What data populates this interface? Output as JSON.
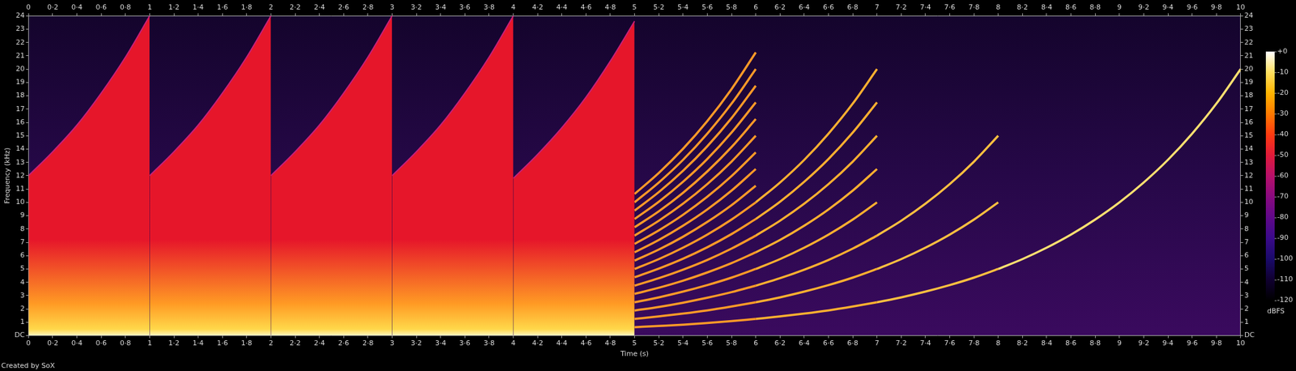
{
  "chart_data": {
    "type": "spectrogram",
    "x_label": "Time (s)",
    "y_label": "Frequency (kHz)",
    "annotations": [
      "Created by SoX"
    ],
    "grid": false,
    "xlim": [
      0,
      10
    ],
    "xticks": [
      0,
      {
        "value": 0.2,
        "label": "0·2"
      },
      {
        "value": 0.4,
        "label": "0·4"
      },
      {
        "value": 0.6,
        "label": "0·6"
      },
      {
        "value": 0.8,
        "label": "0·8"
      },
      1,
      {
        "value": 1.2,
        "label": "1·2"
      },
      {
        "value": 1.4,
        "label": "1·4"
      },
      {
        "value": 1.6,
        "label": "1·6"
      },
      {
        "value": 1.8,
        "label": "1·8"
      },
      2,
      {
        "value": 2.2,
        "label": "2·2"
      },
      {
        "value": 2.4,
        "label": "2·4"
      },
      {
        "value": 2.6,
        "label": "2·6"
      },
      {
        "value": 2.8,
        "label": "2·8"
      },
      3,
      {
        "value": 3.2,
        "label": "3·2"
      },
      {
        "value": 3.4,
        "label": "3·4"
      },
      {
        "value": 3.6,
        "label": "3·6"
      },
      {
        "value": 3.8,
        "label": "3·8"
      },
      4,
      {
        "value": 4.2,
        "label": "4·2"
      },
      {
        "value": 4.4,
        "label": "4·4"
      },
      {
        "value": 4.6,
        "label": "4·6"
      },
      {
        "value": 4.8,
        "label": "4·8"
      },
      5,
      {
        "value": 5.2,
        "label": "5·2"
      },
      {
        "value": 5.4,
        "label": "5·4"
      },
      {
        "value": 5.6,
        "label": "5·6"
      },
      {
        "value": 5.8,
        "label": "5·8"
      },
      6,
      {
        "value": 6.2,
        "label": "6·2"
      },
      {
        "value": 6.4,
        "label": "6·4"
      },
      {
        "value": 6.6,
        "label": "6·6"
      },
      {
        "value": 6.8,
        "label": "6·8"
      },
      7,
      {
        "value": 7.2,
        "label": "7·2"
      },
      {
        "value": 7.4,
        "label": "7·4"
      },
      {
        "value": 7.6,
        "label": "7·6"
      },
      {
        "value": 7.8,
        "label": "7·8"
      },
      8,
      {
        "value": 8.2,
        "label": "8·2"
      },
      {
        "value": 8.4,
        "label": "8·4"
      },
      {
        "value": 8.6,
        "label": "8·6"
      },
      {
        "value": 8.8,
        "label": "8·8"
      },
      9,
      {
        "value": 9.2,
        "label": "9·2"
      },
      {
        "value": 9.4,
        "label": "9·4"
      },
      {
        "value": 9.6,
        "label": "9·6"
      },
      {
        "value": 9.8,
        "label": "9·8"
      },
      10
    ],
    "ylim": [
      0,
      24
    ],
    "yticks": [
      {
        "value": 0,
        "label": "DC"
      },
      1,
      2,
      3,
      4,
      5,
      6,
      7,
      8,
      9,
      10,
      11,
      12,
      13,
      14,
      15,
      16,
      17,
      18,
      19,
      20,
      21,
      22,
      23,
      24
    ],
    "colorbar": {
      "label": "dBFS",
      "range": [
        -120,
        0
      ],
      "ticks": [
        {
          "value": 0,
          "label": "+0"
        },
        -10,
        -20,
        -30,
        -40,
        -50,
        -60,
        -70,
        -80,
        -90,
        -100,
        -110,
        -120
      ]
    },
    "series": [
      {
        "type": "area",
        "color": "#e6162a",
        "x": [
          0,
          0.2,
          0.4,
          0.6,
          0.8,
          1
        ],
        "values": [
          12,
          13.8,
          15.8,
          18.2,
          20.9,
          24
        ]
      },
      {
        "type": "area",
        "color": "#e6162a",
        "x": [
          1,
          1.2,
          1.4,
          1.6,
          1.8,
          2
        ],
        "values": [
          12,
          13.8,
          15.8,
          18.2,
          20.9,
          24
        ]
      },
      {
        "type": "area",
        "color": "#e6162a",
        "x": [
          2,
          2.2,
          2.4,
          2.6,
          2.8,
          3
        ],
        "values": [
          12,
          13.8,
          15.8,
          18.2,
          20.9,
          24
        ]
      },
      {
        "type": "area",
        "color": "#e6162a",
        "x": [
          3,
          3.2,
          3.4,
          3.6,
          3.8,
          4
        ],
        "values": [
          12,
          13.8,
          15.8,
          18.2,
          20.9,
          24
        ]
      },
      {
        "type": "area",
        "color": "#e6162a",
        "x": [
          4,
          4.2,
          4.4,
          4.6,
          4.8,
          5
        ],
        "values": [
          11.8,
          13.6,
          15.6,
          17.9,
          20.6,
          23.6
        ]
      },
      {
        "type": "line",
        "color": "#ff9a28",
        "x": [
          5,
          5.2,
          5.4,
          5.6,
          5.8,
          6
        ],
        "values": [
          0.63,
          0.72,
          0.82,
          0.95,
          1.09,
          1.25
        ]
      },
      {
        "type": "line",
        "color": "#ff9a28",
        "x": [
          5,
          5.2,
          5.4,
          5.6,
          5.8,
          6
        ],
        "values": [
          1.25,
          1.44,
          1.65,
          1.89,
          2.18,
          2.5
        ]
      },
      {
        "type": "line",
        "color": "#ff9a28",
        "x": [
          5,
          5.2,
          5.4,
          5.6,
          5.8,
          6
        ],
        "values": [
          1.88,
          2.15,
          2.47,
          2.84,
          3.26,
          3.75
        ]
      },
      {
        "type": "line",
        "color": "#ff9a28",
        "x": [
          5,
          5.2,
          5.4,
          5.6,
          5.8,
          6
        ],
        "values": [
          2.5,
          2.87,
          3.3,
          3.79,
          4.35,
          5
        ]
      },
      {
        "type": "line",
        "color": "#ff9a28",
        "x": [
          5,
          5.2,
          5.4,
          5.6,
          5.8,
          6
        ],
        "values": [
          3.13,
          3.59,
          4.12,
          4.74,
          5.44,
          6.25
        ]
      },
      {
        "type": "line",
        "color": "#ff9a28",
        "x": [
          5,
          5.2,
          5.4,
          5.6,
          5.8,
          6
        ],
        "values": [
          3.75,
          4.31,
          4.95,
          5.68,
          6.53,
          7.5
        ]
      },
      {
        "type": "line",
        "color": "#ff9a28",
        "x": [
          5,
          5.2,
          5.4,
          5.6,
          5.8,
          6
        ],
        "values": [
          4.38,
          5.03,
          5.77,
          6.63,
          7.62,
          8.75
        ]
      },
      {
        "type": "line",
        "color": "#ff9a28",
        "x": [
          5,
          5.2,
          5.4,
          5.6,
          5.8,
          6
        ],
        "values": [
          5,
          5.74,
          6.6,
          7.58,
          8.71,
          10
        ]
      },
      {
        "type": "line",
        "color": "#ff9a28",
        "x": [
          5,
          5.2,
          5.4,
          5.6,
          5.8,
          6
        ],
        "values": [
          5.63,
          6.46,
          7.42,
          8.53,
          9.79,
          11.25
        ]
      },
      {
        "type": "line",
        "color": "#ff9a28",
        "x": [
          5,
          5.2,
          5.4,
          5.6,
          5.8,
          6
        ],
        "values": [
          6.25,
          7.18,
          8.25,
          9.47,
          10.88,
          12.5
        ]
      },
      {
        "type": "line",
        "color": "#ff9a28",
        "x": [
          5,
          5.2,
          5.4,
          5.6,
          5.8,
          6
        ],
        "values": [
          6.88,
          7.9,
          9.07,
          10.42,
          11.97,
          13.75
        ]
      },
      {
        "type": "line",
        "color": "#ff9a28",
        "x": [
          5,
          5.2,
          5.4,
          5.6,
          5.8,
          6
        ],
        "values": [
          7.5,
          8.62,
          9.9,
          11.37,
          13.06,
          15
        ]
      },
      {
        "type": "line",
        "color": "#ff9a28",
        "x": [
          5,
          5.2,
          5.4,
          5.6,
          5.8,
          6
        ],
        "values": [
          8.13,
          9.33,
          10.72,
          12.32,
          14.15,
          16.25
        ]
      },
      {
        "type": "line",
        "color": "#ff9a28",
        "x": [
          5,
          5.2,
          5.4,
          5.6,
          5.8,
          6
        ],
        "values": [
          8.75,
          10.05,
          11.55,
          13.26,
          15.24,
          17.5
        ]
      },
      {
        "type": "line",
        "color": "#ff9a28",
        "x": [
          5,
          5.2,
          5.4,
          5.6,
          5.8,
          6
        ],
        "values": [
          9.38,
          10.77,
          12.37,
          14.21,
          16.32,
          18.75
        ]
      },
      {
        "type": "line",
        "color": "#ff9a28",
        "x": [
          5,
          5.2,
          5.4,
          5.6,
          5.8,
          6
        ],
        "values": [
          10,
          11.49,
          13.19,
          15.16,
          17.41,
          20
        ]
      },
      {
        "type": "line",
        "color": "#ff9a28",
        "x": [
          5,
          5.2,
          5.4,
          5.6,
          5.8,
          6
        ],
        "values": [
          10.63,
          12.21,
          14.02,
          16.1,
          18.5,
          21.25
        ]
      },
      {
        "type": "line",
        "color": "#ffb030",
        "x": [
          6,
          6.2,
          6.4,
          6.6,
          6.8,
          7
        ],
        "values": [
          1.25,
          1.44,
          1.65,
          1.89,
          2.18,
          2.5
        ]
      },
      {
        "type": "line",
        "color": "#ffb030",
        "x": [
          6,
          6.2,
          6.4,
          6.6,
          6.8,
          7
        ],
        "values": [
          2.5,
          2.87,
          3.3,
          3.79,
          4.35,
          5
        ]
      },
      {
        "type": "line",
        "color": "#ffb030",
        "x": [
          6,
          6.2,
          6.4,
          6.6,
          6.8,
          7
        ],
        "values": [
          3.75,
          4.31,
          4.95,
          5.68,
          6.53,
          7.5
        ]
      },
      {
        "type": "line",
        "color": "#ffb030",
        "x": [
          6,
          6.2,
          6.4,
          6.6,
          6.8,
          7
        ],
        "values": [
          5,
          5.74,
          6.6,
          7.58,
          8.71,
          10
        ]
      },
      {
        "type": "line",
        "color": "#ffb030",
        "x": [
          6,
          6.2,
          6.4,
          6.6,
          6.8,
          7
        ],
        "values": [
          6.25,
          7.18,
          8.25,
          9.47,
          10.88,
          12.5
        ]
      },
      {
        "type": "line",
        "color": "#ffb030",
        "x": [
          6,
          6.2,
          6.4,
          6.6,
          6.8,
          7
        ],
        "values": [
          7.5,
          8.62,
          9.9,
          11.37,
          13.06,
          15
        ]
      },
      {
        "type": "line",
        "color": "#ffb030",
        "x": [
          6,
          6.2,
          6.4,
          6.6,
          6.8,
          7
        ],
        "values": [
          8.75,
          10.05,
          11.55,
          13.26,
          15.24,
          17.5
        ]
      },
      {
        "type": "line",
        "color": "#ffb030",
        "x": [
          6,
          6.2,
          6.4,
          6.6,
          6.8,
          7
        ],
        "values": [
          10,
          11.49,
          13.19,
          15.16,
          17.41,
          20
        ]
      },
      {
        "type": "line",
        "color": "#ffc040",
        "x": [
          7,
          7.2,
          7.4,
          7.6,
          7.8,
          8
        ],
        "values": [
          2.5,
          2.87,
          3.3,
          3.79,
          4.35,
          5
        ]
      },
      {
        "type": "line",
        "color": "#ffc040",
        "x": [
          7,
          7.2,
          7.4,
          7.6,
          7.8,
          8
        ],
        "values": [
          5,
          5.74,
          6.6,
          7.58,
          8.71,
          10
        ]
      },
      {
        "type": "line",
        "color": "#ffc040",
        "x": [
          7,
          7.2,
          7.4,
          7.6,
          7.8,
          8
        ],
        "values": [
          7.5,
          8.62,
          9.9,
          11.37,
          13.06,
          15
        ]
      },
      {
        "type": "line",
        "color": "#ffe070",
        "x": [
          8,
          8.2,
          8.4,
          8.6,
          8.8,
          9,
          9.2,
          9.4,
          9.6,
          9.8,
          10
        ],
        "values": [
          5,
          5.74,
          6.6,
          7.58,
          8.71,
          10,
          11.49,
          13.19,
          15.16,
          17.41,
          20
        ]
      }
    ]
  }
}
